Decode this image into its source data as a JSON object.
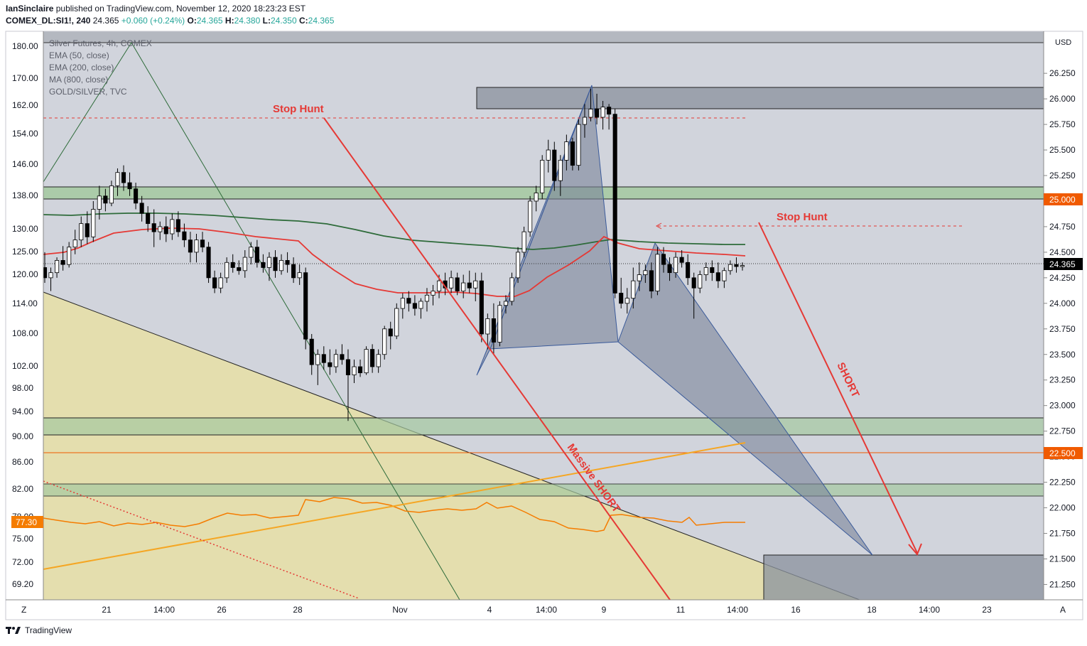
{
  "header": {
    "author": "IanSinclaire",
    "published_text": "published on TradingView.com, November 12, 2020 18:23:23 EST",
    "symbol": "COMEX_DL:SI1!, 240",
    "last": "24.365",
    "change": "+0.060 (+0.24%)",
    "o_label": "O:",
    "o_val": "24.365",
    "h_label": "H:",
    "h_val": "24.380",
    "l_label": "L:",
    "l_val": "24.350",
    "c_label": "C:",
    "c_val": "24.365"
  },
  "indicators": [
    "Silver Futures, 4h, COMEX",
    "EMA (50, close)",
    "EMA (200, close)",
    "MA (800, close)",
    "GOLD/SILVER, TVC"
  ],
  "footer": {
    "brand": "TradingView"
  },
  "buttons": {
    "zoom": "Z",
    "auto": "A"
  },
  "annotations": {
    "stop_hunt_left": "Stop Hunt",
    "stop_hunt_right": "Stop Hunt",
    "massive_short": "Massive SHORT",
    "short": "SHORT"
  },
  "colors": {
    "chart_bg": "#d1d4dc",
    "green_zone": "#a5c9a0",
    "yellow_zone": "#e6dfa8",
    "harmonic_fill": "#8a94a6",
    "ema50": "#f23645",
    "ema200": "#2e6b3a",
    "gold_silver": "#f57c00",
    "annotation_red": "#e53935",
    "price_tag": "#000000",
    "level_tag": "#f05a00"
  },
  "chart_data": {
    "type": "candlestick",
    "title": "Silver Futures, 4h, COMEX",
    "right_axis": {
      "label": "USD",
      "ticks": [
        "26.250",
        "26.000",
        "25.750",
        "25.500",
        "25.250",
        "25.000",
        "24.750",
        "24.500",
        "24.250",
        "24.000",
        "23.750",
        "23.500",
        "23.250",
        "23.000",
        "22.750",
        "22.500",
        "22.250",
        "22.000",
        "21.750",
        "21.500",
        "21.250"
      ],
      "range": [
        21.1,
        26.55
      ],
      "current_price": "24.365",
      "level_labels": [
        "25.000",
        "22.500"
      ]
    },
    "left_axis": {
      "ticks": [
        "180.00",
        "170.00",
        "162.00",
        "154.00",
        "146.00",
        "138.00",
        "130.00",
        "125.00",
        "120.00",
        "114.00",
        "108.00",
        "102.00",
        "98.00",
        "94.00",
        "90.00",
        "86.00",
        "82.00",
        "78.00",
        "75.00",
        "72.00",
        "69.20"
      ],
      "current_value": "77.30"
    },
    "x_axis": {
      "ticks": [
        "21",
        "14:00",
        "26",
        "28",
        "Nov",
        "4",
        "14:00",
        "9",
        "11",
        "14:00",
        "16",
        "18",
        "14:00",
        "23"
      ]
    },
    "ohlc": [
      [
        24.35,
        24.5,
        24.2,
        24.25
      ],
      [
        24.25,
        24.35,
        24.12,
        24.3
      ],
      [
        24.3,
        24.45,
        24.25,
        24.42
      ],
      [
        24.42,
        24.56,
        24.32,
        24.38
      ],
      [
        24.38,
        24.6,
        24.35,
        24.55
      ],
      [
        24.55,
        24.72,
        24.48,
        24.62
      ],
      [
        24.62,
        24.85,
        24.55,
        24.78
      ],
      [
        24.78,
        24.9,
        24.58,
        24.65
      ],
      [
        24.65,
        25.0,
        24.6,
        24.92
      ],
      [
        24.92,
        25.15,
        24.82,
        25.05
      ],
      [
        25.05,
        25.12,
        24.9,
        24.98
      ],
      [
        24.98,
        25.2,
        24.95,
        25.15
      ],
      [
        25.15,
        25.32,
        25.05,
        25.28
      ],
      [
        25.28,
        25.35,
        25.1,
        25.18
      ],
      [
        25.18,
        25.28,
        25.05,
        25.12
      ],
      [
        25.12,
        25.18,
        24.92,
        24.98
      ],
      [
        24.98,
        25.05,
        24.8,
        24.88
      ],
      [
        24.88,
        24.95,
        24.7,
        24.78
      ],
      [
        24.78,
        24.92,
        24.55,
        24.7
      ],
      [
        24.7,
        24.8,
        24.62,
        24.75
      ],
      [
        24.75,
        24.85,
        24.6,
        24.68
      ],
      [
        24.68,
        24.88,
        24.62,
        24.82
      ],
      [
        24.82,
        24.9,
        24.65,
        24.7
      ],
      [
        24.7,
        24.78,
        24.55,
        24.62
      ],
      [
        24.62,
        24.7,
        24.4,
        24.5
      ],
      [
        24.5,
        24.68,
        24.4,
        24.62
      ],
      [
        24.62,
        24.7,
        24.5,
        24.55
      ],
      [
        24.55,
        24.6,
        24.2,
        24.25
      ],
      [
        24.25,
        24.32,
        24.1,
        24.15
      ],
      [
        24.15,
        24.3,
        24.1,
        24.25
      ],
      [
        24.25,
        24.45,
        24.2,
        24.4
      ],
      [
        24.4,
        24.48,
        24.3,
        24.35
      ],
      [
        24.35,
        24.42,
        24.28,
        24.32
      ],
      [
        24.32,
        24.52,
        24.25,
        24.45
      ],
      [
        24.45,
        24.6,
        24.38,
        24.55
      ],
      [
        24.55,
        24.62,
        24.35,
        24.4
      ],
      [
        24.4,
        24.48,
        24.3,
        24.35
      ],
      [
        24.35,
        24.5,
        24.22,
        24.45
      ],
      [
        24.45,
        24.52,
        24.25,
        24.32
      ],
      [
        24.32,
        24.48,
        24.28,
        24.42
      ],
      [
        24.42,
        24.5,
        24.3,
        24.38
      ],
      [
        24.38,
        24.45,
        24.2,
        24.25
      ],
      [
        24.25,
        24.38,
        24.18,
        24.3
      ],
      [
        24.3,
        24.35,
        23.55,
        23.65
      ],
      [
        23.65,
        23.7,
        23.3,
        23.4
      ],
      [
        23.4,
        23.55,
        23.2,
        23.5
      ],
      [
        23.5,
        23.58,
        23.35,
        23.42
      ],
      [
        23.42,
        23.55,
        23.3,
        23.38
      ],
      [
        23.38,
        23.55,
        23.32,
        23.5
      ],
      [
        23.5,
        23.6,
        23.4,
        23.45
      ],
      [
        23.45,
        23.55,
        22.85,
        23.3
      ],
      [
        23.3,
        23.45,
        23.22,
        23.38
      ],
      [
        23.38,
        23.45,
        23.28,
        23.32
      ],
      [
        23.32,
        23.58,
        23.3,
        23.55
      ],
      [
        23.55,
        23.6,
        23.32,
        23.38
      ],
      [
        23.38,
        23.55,
        23.32,
        23.5
      ],
      [
        23.5,
        23.78,
        23.45,
        23.75
      ],
      [
        23.75,
        23.82,
        23.55,
        23.68
      ],
      [
        23.68,
        24.0,
        23.65,
        23.95
      ],
      [
        23.95,
        24.1,
        23.85,
        24.05
      ],
      [
        24.05,
        24.12,
        23.92,
        24.0
      ],
      [
        24.0,
        24.08,
        23.88,
        23.95
      ],
      [
        23.95,
        24.05,
        23.85,
        24.02
      ],
      [
        24.02,
        24.15,
        23.92,
        24.08
      ],
      [
        24.08,
        24.18,
        23.98,
        24.12
      ],
      [
        24.12,
        24.28,
        24.05,
        24.22
      ],
      [
        24.22,
        24.3,
        24.08,
        24.15
      ],
      [
        24.15,
        24.32,
        24.1,
        24.25
      ],
      [
        24.25,
        24.3,
        24.08,
        24.12
      ],
      [
        24.12,
        24.28,
        24.05,
        24.2
      ],
      [
        24.2,
        24.32,
        24.1,
        24.15
      ],
      [
        24.15,
        24.3,
        24.02,
        24.22
      ],
      [
        24.22,
        24.3,
        23.62,
        23.7
      ],
      [
        23.7,
        23.9,
        23.55,
        23.85
      ],
      [
        23.85,
        24.0,
        23.5,
        23.62
      ],
      [
        23.62,
        24.02,
        23.58,
        23.98
      ],
      [
        23.98,
        24.08,
        23.9,
        24.02
      ],
      [
        24.02,
        24.3,
        23.98,
        24.25
      ],
      [
        24.25,
        24.55,
        24.2,
        24.5
      ],
      [
        24.5,
        24.75,
        24.45,
        24.7
      ],
      [
        24.7,
        25.05,
        24.65,
        25.0
      ],
      [
        25.0,
        25.15,
        24.9,
        25.08
      ],
      [
        25.08,
        25.45,
        25.02,
        25.4
      ],
      [
        25.4,
        25.6,
        25.28,
        25.5
      ],
      [
        25.5,
        25.58,
        25.1,
        25.2
      ],
      [
        25.2,
        25.45,
        25.05,
        25.4
      ],
      [
        25.4,
        25.65,
        25.3,
        25.58
      ],
      [
        25.58,
        25.62,
        25.3,
        25.35
      ],
      [
        25.35,
        25.8,
        25.3,
        25.75
      ],
      [
        25.75,
        25.95,
        25.62,
        25.82
      ],
      [
        25.82,
        26.1,
        25.78,
        25.9
      ],
      [
        25.9,
        26.05,
        25.75,
        25.82
      ],
      [
        25.82,
        25.98,
        25.7,
        25.92
      ],
      [
        25.92,
        25.95,
        25.7,
        25.85
      ],
      [
        25.85,
        25.9,
        24.05,
        24.1
      ],
      [
        24.1,
        24.25,
        23.95,
        24.0
      ],
      [
        24.0,
        24.15,
        23.9,
        24.05
      ],
      [
        24.05,
        24.35,
        23.95,
        24.22
      ],
      [
        24.22,
        24.4,
        24.12,
        24.28
      ],
      [
        24.28,
        24.38,
        24.2,
        24.32
      ],
      [
        24.32,
        24.4,
        24.05,
        24.12
      ],
      [
        24.12,
        24.55,
        24.08,
        24.48
      ],
      [
        24.48,
        24.55,
        24.3,
        24.38
      ],
      [
        24.38,
        24.45,
        24.22,
        24.3
      ],
      [
        24.3,
        24.5,
        24.25,
        24.45
      ],
      [
        24.45,
        24.52,
        24.35,
        24.4
      ],
      [
        24.4,
        24.48,
        24.18,
        24.25
      ],
      [
        24.25,
        24.3,
        23.85,
        24.15
      ],
      [
        24.15,
        24.32,
        24.1,
        24.28
      ],
      [
        24.28,
        24.4,
        24.22,
        24.35
      ],
      [
        24.35,
        24.42,
        24.22,
        24.3
      ],
      [
        24.3,
        24.4,
        24.15,
        24.22
      ],
      [
        24.22,
        24.35,
        24.15,
        24.32
      ],
      [
        24.32,
        24.42,
        24.28,
        24.38
      ],
      [
        24.38,
        24.45,
        24.3,
        24.36
      ],
      [
        24.36,
        24.4,
        24.32,
        24.37
      ]
    ]
  }
}
